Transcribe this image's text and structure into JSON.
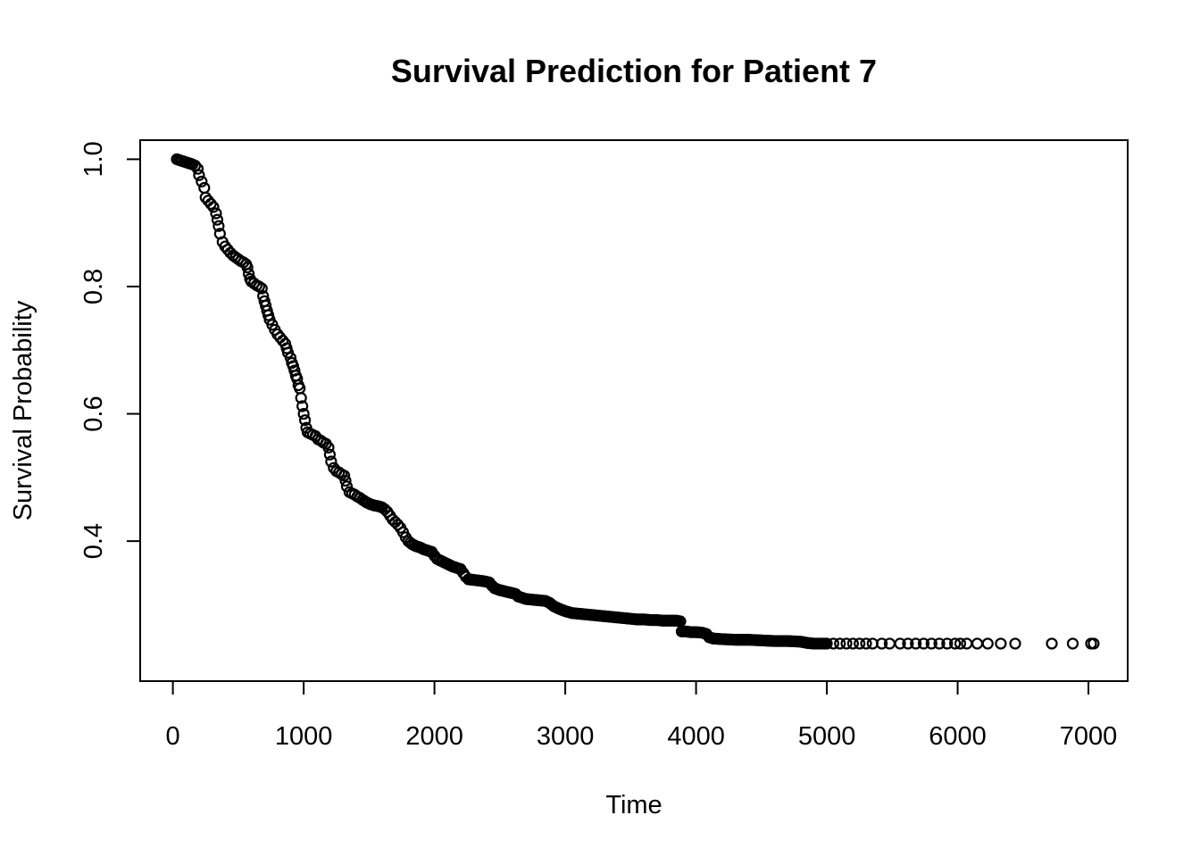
{
  "chart_data": {
    "type": "scatter",
    "title": "Survival Prediction for Patient 7",
    "xlabel": "Time",
    "ylabel": "Survival Probability",
    "xlim": [
      -250,
      7300
    ],
    "ylim": [
      0.18,
      1.03
    ],
    "x_ticks": [
      0,
      1000,
      2000,
      3000,
      4000,
      5000,
      6000,
      7000
    ],
    "x_tick_labels": [
      "0",
      "1000",
      "2000",
      "3000",
      "4000",
      "5000",
      "6000",
      "7000"
    ],
    "y_ticks": [
      0.4,
      0.6,
      0.8,
      1.0
    ],
    "y_tick_labels": [
      "0.4",
      "0.6",
      "0.8",
      "1.0"
    ],
    "grid": false,
    "legend": "none",
    "points": [
      [
        30,
        1.0
      ],
      [
        60,
        0.998
      ],
      [
        90,
        0.996
      ],
      [
        120,
        0.994
      ],
      [
        150,
        0.992
      ],
      [
        170,
        0.99
      ],
      [
        190,
        0.985
      ],
      [
        200,
        0.975
      ],
      [
        220,
        0.965
      ],
      [
        240,
        0.955
      ],
      [
        250,
        0.94
      ],
      [
        270,
        0.935
      ],
      [
        290,
        0.93
      ],
      [
        310,
        0.925
      ],
      [
        330,
        0.915
      ],
      [
        340,
        0.905
      ],
      [
        350,
        0.895
      ],
      [
        360,
        0.883
      ],
      [
        380,
        0.87
      ],
      [
        400,
        0.863
      ],
      [
        420,
        0.858
      ],
      [
        440,
        0.853
      ],
      [
        460,
        0.849
      ],
      [
        480,
        0.846
      ],
      [
        500,
        0.843
      ],
      [
        520,
        0.84
      ],
      [
        540,
        0.838
      ],
      [
        560,
        0.835
      ],
      [
        570,
        0.83
      ],
      [
        580,
        0.82
      ],
      [
        590,
        0.812
      ],
      [
        600,
        0.808
      ],
      [
        620,
        0.805
      ],
      [
        640,
        0.802
      ],
      [
        660,
        0.8
      ],
      [
        680,
        0.797
      ],
      [
        690,
        0.785
      ],
      [
        700,
        0.777
      ],
      [
        710,
        0.77
      ],
      [
        720,
        0.762
      ],
      [
        730,
        0.755
      ],
      [
        740,
        0.748
      ],
      [
        760,
        0.74
      ],
      [
        780,
        0.732
      ],
      [
        800,
        0.725
      ],
      [
        820,
        0.72
      ],
      [
        840,
        0.715
      ],
      [
        860,
        0.71
      ],
      [
        870,
        0.703
      ],
      [
        880,
        0.696
      ],
      [
        900,
        0.688
      ],
      [
        910,
        0.68
      ],
      [
        920,
        0.675
      ],
      [
        930,
        0.668
      ],
      [
        940,
        0.66
      ],
      [
        950,
        0.655
      ],
      [
        960,
        0.645
      ],
      [
        970,
        0.64
      ],
      [
        980,
        0.625
      ],
      [
        990,
        0.612
      ],
      [
        1000,
        0.6
      ],
      [
        1010,
        0.59
      ],
      [
        1020,
        0.578
      ],
      [
        1030,
        0.571
      ],
      [
        1050,
        0.569
      ],
      [
        1070,
        0.567
      ],
      [
        1090,
        0.565
      ],
      [
        1110,
        0.56
      ],
      [
        1130,
        0.558
      ],
      [
        1150,
        0.555
      ],
      [
        1170,
        0.553
      ],
      [
        1190,
        0.547
      ],
      [
        1200,
        0.536
      ],
      [
        1210,
        0.525
      ],
      [
        1230,
        0.515
      ],
      [
        1250,
        0.51
      ],
      [
        1270,
        0.508
      ],
      [
        1290,
        0.505
      ],
      [
        1310,
        0.503
      ],
      [
        1320,
        0.495
      ],
      [
        1330,
        0.486
      ],
      [
        1350,
        0.477
      ],
      [
        1370,
        0.475
      ],
      [
        1390,
        0.473
      ],
      [
        1410,
        0.47
      ],
      [
        1430,
        0.468
      ],
      [
        1450,
        0.465
      ],
      [
        1480,
        0.461
      ],
      [
        1510,
        0.458
      ],
      [
        1540,
        0.456
      ],
      [
        1570,
        0.455
      ],
      [
        1600,
        0.453
      ],
      [
        1620,
        0.45
      ],
      [
        1640,
        0.446
      ],
      [
        1660,
        0.44
      ],
      [
        1680,
        0.434
      ],
      [
        1700,
        0.43
      ],
      [
        1720,
        0.426
      ],
      [
        1740,
        0.421
      ],
      [
        1760,
        0.414
      ],
      [
        1780,
        0.406
      ],
      [
        1800,
        0.4
      ],
      [
        1830,
        0.395
      ],
      [
        1860,
        0.392
      ],
      [
        1890,
        0.39
      ],
      [
        1920,
        0.387
      ],
      [
        1950,
        0.385
      ],
      [
        1980,
        0.383
      ],
      [
        2000,
        0.377
      ],
      [
        2020,
        0.372
      ],
      [
        2050,
        0.369
      ],
      [
        2080,
        0.366
      ],
      [
        2110,
        0.363
      ],
      [
        2140,
        0.36
      ],
      [
        2170,
        0.358
      ],
      [
        2200,
        0.356
      ],
      [
        2220,
        0.35
      ],
      [
        2240,
        0.344
      ],
      [
        2260,
        0.34
      ],
      [
        2300,
        0.339
      ],
      [
        2340,
        0.338
      ],
      [
        2380,
        0.337
      ],
      [
        2420,
        0.335
      ],
      [
        2440,
        0.33
      ],
      [
        2460,
        0.326
      ],
      [
        2500,
        0.323
      ],
      [
        2540,
        0.321
      ],
      [
        2580,
        0.319
      ],
      [
        2620,
        0.317
      ],
      [
        2640,
        0.313
      ],
      [
        2670,
        0.311
      ],
      [
        2700,
        0.309
      ],
      [
        2750,
        0.308
      ],
      [
        2800,
        0.307
      ],
      [
        2850,
        0.306
      ],
      [
        2880,
        0.303
      ],
      [
        2910,
        0.298
      ],
      [
        2950,
        0.294
      ],
      [
        3000,
        0.29
      ],
      [
        3050,
        0.287
      ],
      [
        3100,
        0.286
      ],
      [
        3150,
        0.285
      ],
      [
        3200,
        0.284
      ],
      [
        3250,
        0.283
      ],
      [
        3300,
        0.282
      ],
      [
        3350,
        0.281
      ],
      [
        3400,
        0.28
      ],
      [
        3450,
        0.279
      ],
      [
        3500,
        0.278
      ],
      [
        3550,
        0.277
      ],
      [
        3600,
        0.277
      ],
      [
        3650,
        0.276
      ],
      [
        3700,
        0.276
      ],
      [
        3750,
        0.275
      ],
      [
        3800,
        0.275
      ],
      [
        3850,
        0.275
      ],
      [
        3880,
        0.274
      ],
      [
        3890,
        0.258
      ],
      [
        3920,
        0.258
      ],
      [
        3960,
        0.257
      ],
      [
        4000,
        0.257
      ],
      [
        4050,
        0.256
      ],
      [
        4080,
        0.254
      ],
      [
        4100,
        0.249
      ],
      [
        4130,
        0.247
      ],
      [
        4200,
        0.246
      ],
      [
        4300,
        0.245
      ],
      [
        4400,
        0.245
      ],
      [
        4500,
        0.244
      ],
      [
        4600,
        0.243
      ],
      [
        4700,
        0.243
      ],
      [
        4800,
        0.242
      ],
      [
        4850,
        0.24
      ],
      [
        4900,
        0.239
      ],
      [
        4950,
        0.239
      ],
      [
        5000,
        0.239
      ],
      [
        5050,
        0.239
      ],
      [
        5100,
        0.239
      ],
      [
        5150,
        0.239
      ],
      [
        5200,
        0.239
      ],
      [
        5250,
        0.239
      ],
      [
        5300,
        0.239
      ],
      [
        5350,
        0.239
      ],
      [
        5420,
        0.239
      ],
      [
        5480,
        0.239
      ],
      [
        5560,
        0.239
      ],
      [
        5620,
        0.239
      ],
      [
        5680,
        0.239
      ],
      [
        5740,
        0.239
      ],
      [
        5800,
        0.239
      ],
      [
        5860,
        0.239
      ],
      [
        5920,
        0.239
      ],
      [
        5980,
        0.239
      ],
      [
        6020,
        0.239
      ],
      [
        6070,
        0.239
      ],
      [
        6150,
        0.239
      ],
      [
        6230,
        0.239
      ],
      [
        6330,
        0.239
      ],
      [
        6440,
        0.239
      ],
      [
        6720,
        0.239
      ],
      [
        6880,
        0.239
      ],
      [
        7020,
        0.239
      ],
      [
        7040,
        0.239
      ]
    ]
  }
}
